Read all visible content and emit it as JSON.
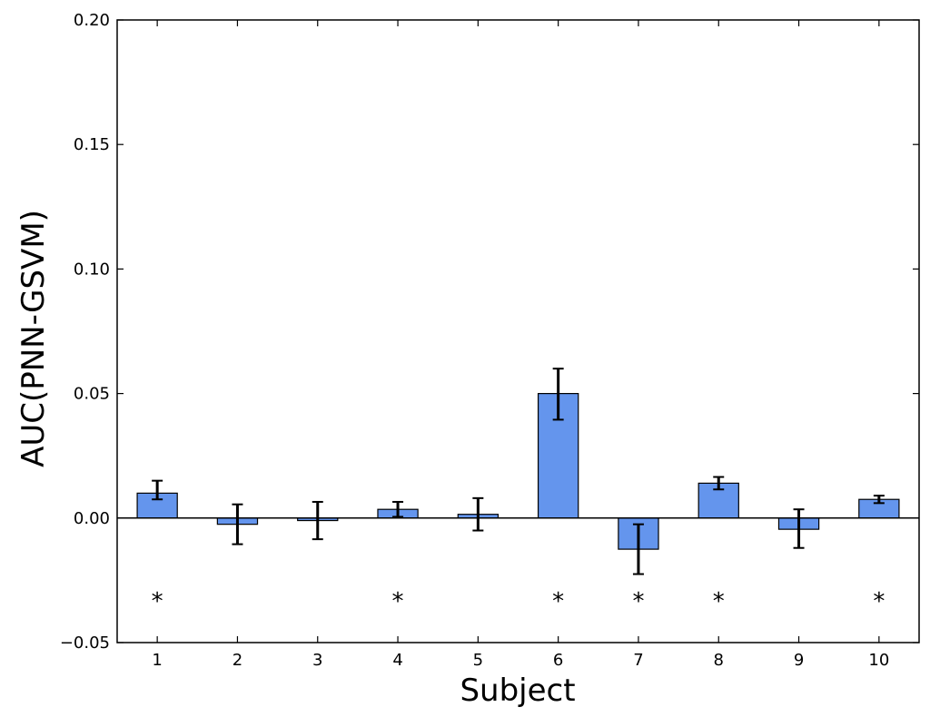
{
  "chart_data": {
    "type": "bar",
    "title": "",
    "xlabel": "Subject",
    "ylabel": "AUC(PNN-GSVM)",
    "categories": [
      "1",
      "2",
      "3",
      "4",
      "5",
      "6",
      "7",
      "8",
      "9",
      "10"
    ],
    "values": [
      0.01,
      -0.0025,
      -0.001,
      0.0035,
      0.0015,
      0.05,
      -0.0125,
      0.014,
      -0.0045,
      0.0075
    ],
    "error_low": [
      0.0075,
      -0.0105,
      -0.0085,
      0.0005,
      -0.005,
      0.0395,
      -0.0225,
      0.0115,
      -0.012,
      0.006
    ],
    "error_high": [
      0.015,
      0.0055,
      0.0065,
      0.0065,
      0.008,
      0.06,
      -0.0025,
      0.0165,
      0.0035,
      0.009
    ],
    "significance_marker": "*",
    "significant": [
      true,
      false,
      false,
      true,
      false,
      true,
      true,
      true,
      false,
      true
    ],
    "marker_y": -0.03,
    "ylim": [
      -0.05,
      0.2
    ],
    "yticks": [
      -0.05,
      0.0,
      0.05,
      0.1,
      0.15,
      0.2
    ],
    "ytick_labels": [
      "−0.05",
      "0.00",
      "0.05",
      "0.10",
      "0.15",
      "0.20"
    ],
    "grid": false,
    "bar_color": "#6495ED",
    "error_color": "#000000"
  }
}
